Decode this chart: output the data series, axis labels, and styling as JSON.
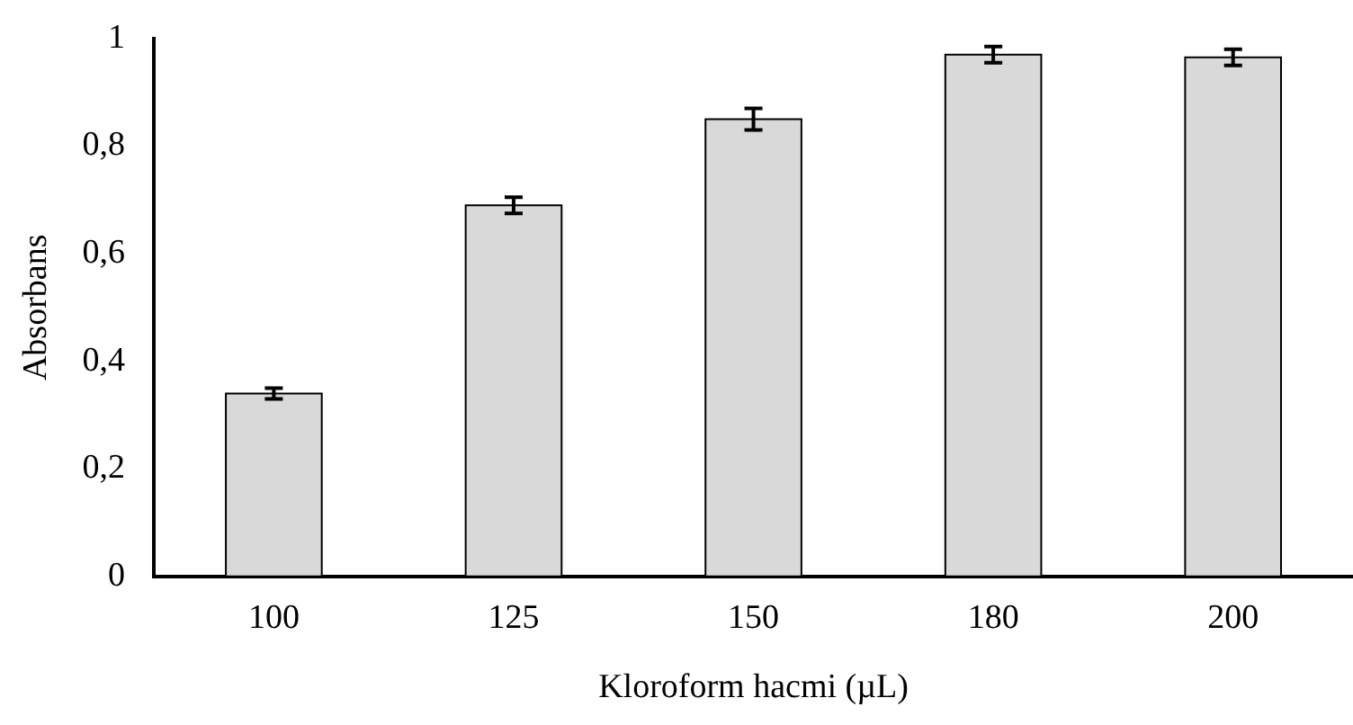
{
  "chart_data": {
    "type": "bar",
    "xlabel": "Kloroform hacmi (µL)",
    "ylabel": "Absorbans",
    "categories": [
      "100",
      "125",
      "150",
      "180",
      "200"
    ],
    "values": [
      0.34,
      0.69,
      0.85,
      0.97,
      0.965
    ],
    "errors": [
      0.01,
      0.015,
      0.02,
      0.015,
      0.015
    ],
    "color": "#d9d9d9",
    "ylim": [
      0,
      1
    ],
    "yticks": [
      {
        "value": 0,
        "label": "0"
      },
      {
        "value": 0.2,
        "label": "0,2"
      },
      {
        "value": 0.4,
        "label": "0,4"
      },
      {
        "value": 0.6,
        "label": "0,6"
      },
      {
        "value": 0.8,
        "label": "0,8"
      },
      {
        "value": 1,
        "label": "1"
      }
    ],
    "grid": false,
    "legend": false
  }
}
